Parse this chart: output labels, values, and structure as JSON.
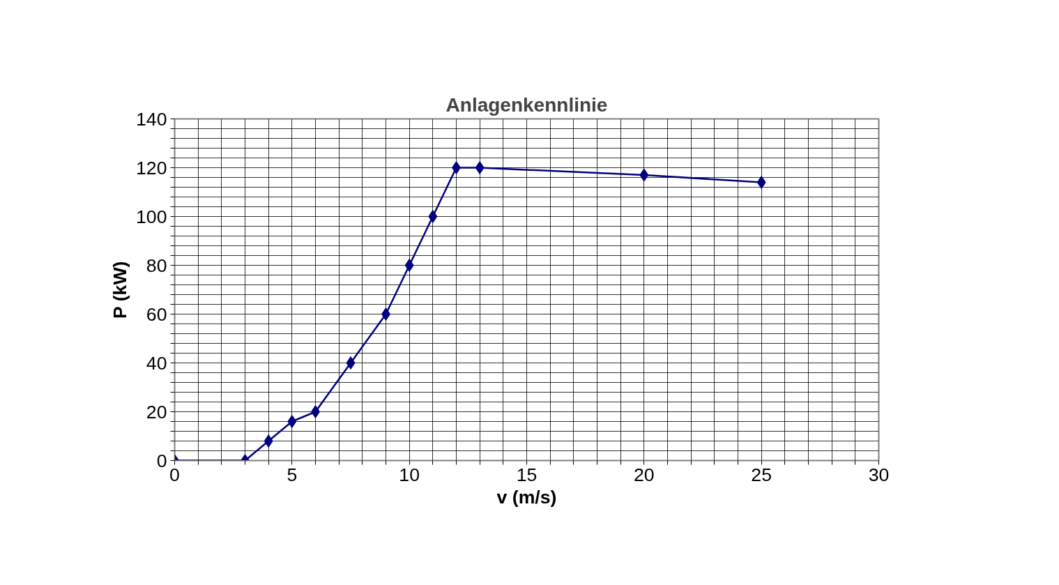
{
  "chart_data": {
    "type": "line",
    "title": "Anlagenkennlinie",
    "xlabel": "v (m/s)",
    "ylabel": "P (kW)",
    "x": [
      0,
      3,
      4,
      5,
      6,
      7.5,
      9,
      10,
      11,
      12,
      13,
      20,
      25
    ],
    "series": [
      {
        "color": "#000080",
        "values": [
          0,
          0,
          8,
          16,
          20,
          40,
          60,
          80,
          100,
          120,
          120,
          117,
          114
        ]
      }
    ],
    "xlim": [
      0,
      30
    ],
    "ylim": [
      0,
      140
    ],
    "xticks": [
      0,
      {
        "value": 1,
        "label": null
      },
      {
        "value": 2,
        "label": null
      },
      {
        "value": 3,
        "label": null
      },
      {
        "value": 4,
        "label": null
      },
      5,
      {
        "value": 6,
        "label": null
      },
      {
        "value": 7,
        "label": null
      },
      {
        "value": 8,
        "label": null
      },
      {
        "value": 9,
        "label": null
      },
      10,
      {
        "value": 11,
        "label": null
      },
      {
        "value": 12,
        "label": null
      },
      {
        "value": 13,
        "label": null
      },
      {
        "value": 14,
        "label": null
      },
      15,
      {
        "value": 16,
        "label": null
      },
      {
        "value": 17,
        "label": null
      },
      {
        "value": 18,
        "label": null
      },
      {
        "value": 19,
        "label": null
      },
      20,
      {
        "value": 21,
        "label": null
      },
      {
        "value": 22,
        "label": null
      },
      {
        "value": 23,
        "label": null
      },
      {
        "value": 24,
        "label": null
      },
      25,
      {
        "value": 26,
        "label": null
      },
      {
        "value": 27,
        "label": null
      },
      {
        "value": 28,
        "label": null
      },
      {
        "value": 29,
        "label": null
      },
      30
    ],
    "yticks": [
      0,
      {
        "value": 4,
        "label": null
      },
      {
        "value": 8,
        "label": null
      },
      {
        "value": 12,
        "label": null
      },
      {
        "value": 16,
        "label": null
      },
      20,
      {
        "value": 24,
        "label": null
      },
      {
        "value": 28,
        "label": null
      },
      {
        "value": 32,
        "label": null
      },
      {
        "value": 36,
        "label": null
      },
      40,
      {
        "value": 44,
        "label": null
      },
      {
        "value": 48,
        "label": null
      },
      {
        "value": 52,
        "label": null
      },
      {
        "value": 56,
        "label": null
      },
      60,
      {
        "value": 64,
        "label": null
      },
      {
        "value": 68,
        "label": null
      },
      {
        "value": 72,
        "label": null
      },
      {
        "value": 76,
        "label": null
      },
      80,
      {
        "value": 84,
        "label": null
      },
      {
        "value": 88,
        "label": null
      },
      {
        "value": 92,
        "label": null
      },
      {
        "value": 96,
        "label": null
      },
      100,
      {
        "value": 104,
        "label": null
      },
      {
        "value": 108,
        "label": null
      },
      {
        "value": 112,
        "label": null
      },
      {
        "value": 116,
        "label": null
      },
      120,
      {
        "value": 124,
        "label": null
      },
      {
        "value": 128,
        "label": null
      },
      {
        "value": 132,
        "label": null
      },
      {
        "value": 136,
        "label": null
      },
      140
    ],
    "grid": true,
    "marker": "diamond",
    "line_style": "solid"
  }
}
